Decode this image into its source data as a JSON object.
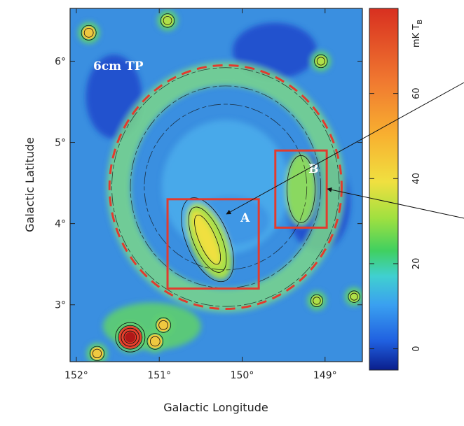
{
  "chart_data": {
    "type": "heatmap",
    "title": "",
    "map_label": "6cm TP",
    "xlabel": "Galactic Longitude",
    "ylabel": "Galactic Latitude",
    "xlim": [
      152.05,
      148.55
    ],
    "ylim": [
      2.3,
      6.65
    ],
    "x_ticks": [
      152,
      151,
      150,
      149
    ],
    "x_tick_labels": [
      "152°",
      "151°",
      "150°",
      "149°"
    ],
    "y_ticks": [
      3,
      4,
      5,
      6
    ],
    "y_tick_labels": [
      "3°",
      "4°",
      "5°",
      "6°"
    ],
    "colorbar": {
      "label": "mK T",
      "label_subscript": "B",
      "range": [
        -5,
        80
      ],
      "ticks": [
        0,
        20,
        40,
        60
      ],
      "tick_labels": [
        "0",
        "20",
        "40",
        "60"
      ]
    },
    "circle": {
      "center_l": 150.2,
      "center_b": 4.45,
      "radius_l": 1.4,
      "radius_b": 1.5,
      "style": "dashed",
      "color": "#e23b2e"
    },
    "regions": [
      {
        "label": "A",
        "l_min": 149.8,
        "l_max": 150.9,
        "b_min": 3.2,
        "b_max": 4.3,
        "color": "#e23b2e"
      },
      {
        "label": "B",
        "l_min": 148.98,
        "l_max": 149.6,
        "b_min": 3.95,
        "b_max": 4.9,
        "color": "#e23b2e"
      }
    ],
    "sources": [
      {
        "l": 151.35,
        "b": 2.6,
        "peak": 80
      },
      {
        "l": 151.05,
        "b": 2.55,
        "peak": 35
      },
      {
        "l": 151.85,
        "b": 6.35,
        "peak": 30
      },
      {
        "l": 150.9,
        "b": 6.5,
        "peak": 25
      },
      {
        "l": 149.05,
        "b": 6.0,
        "peak": 22
      },
      {
        "l": 151.75,
        "b": 2.4,
        "peak": 28
      },
      {
        "l": 149.1,
        "b": 3.05,
        "peak": 18
      },
      {
        "l": 148.65,
        "b": 3.1,
        "peak": 16
      },
      {
        "l": 150.95,
        "b": 2.75,
        "peak": 30
      }
    ],
    "colors": {
      "background": "#3a8fe0",
      "low": "#1a3fc8",
      "ring": "#7ad68a",
      "ridge": "#f0e040",
      "peak": "#e8402c"
    }
  }
}
